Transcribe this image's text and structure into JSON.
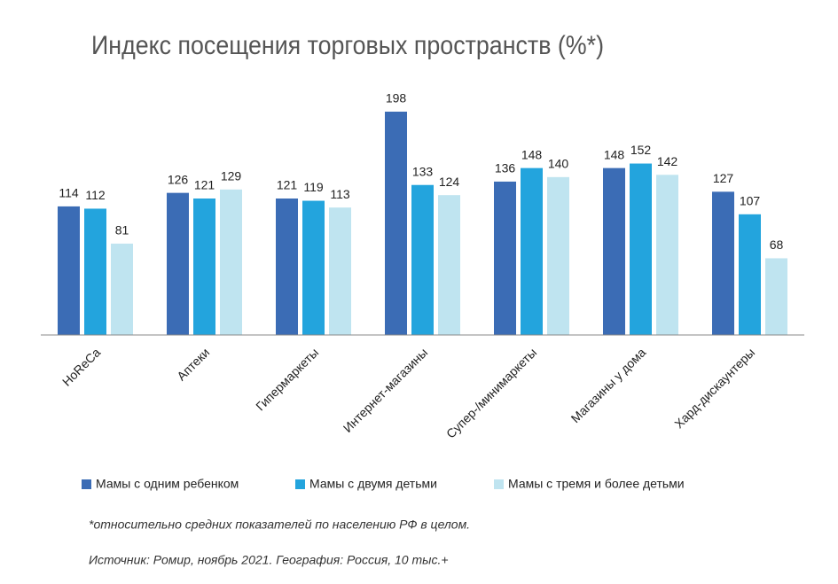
{
  "chart_data": {
    "type": "bar",
    "title": "Индекс посещения торговых пространств (%*)",
    "categories": [
      "HoReCa",
      "Аптеки",
      "Гипермаркеты",
      "Интернет-магазины",
      "Супер-/минимаркеты",
      "Магазины у дома",
      "Хард-дискаунтеры"
    ],
    "series": [
      {
        "name": "Мамы с одним ребенком",
        "color": "#3b6cb5",
        "values": [
          114,
          126,
          121,
          198,
          136,
          148,
          127
        ]
      },
      {
        "name": "Мамы с двумя детьми",
        "color": "#23a4dd",
        "values": [
          112,
          121,
          119,
          133,
          148,
          152,
          107
        ]
      },
      {
        "name": "Мамы с тремя и более детьми",
        "color": "#bfe4f0",
        "values": [
          81,
          129,
          113,
          124,
          140,
          142,
          68
        ]
      }
    ],
    "legend": "bottom",
    "footnote": "*относительно средних показателей по населению РФ в целом.",
    "source": "Источник: Ромир, ноябрь 2021. География: Россия, 10 тыс.+"
  }
}
